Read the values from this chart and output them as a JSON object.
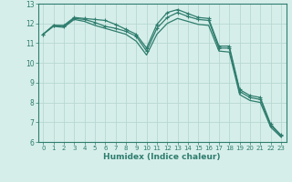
{
  "xlabel": "Humidex (Indice chaleur)",
  "xlim": [
    -0.5,
    23.5
  ],
  "ylim": [
    6,
    13
  ],
  "yticks": [
    6,
    7,
    8,
    9,
    10,
    11,
    12,
    13
  ],
  "xticks": [
    0,
    1,
    2,
    3,
    4,
    5,
    6,
    7,
    8,
    9,
    10,
    11,
    12,
    13,
    14,
    15,
    16,
    17,
    18,
    19,
    20,
    21,
    22,
    23
  ],
  "background_color": "#d6eeea",
  "grid_color": "#b8d8d2",
  "line_color": "#2e7d6e",
  "lines": [
    {
      "x": [
        0,
        1,
        2,
        3,
        4,
        5,
        6,
        7,
        8,
        9,
        10,
        11,
        12,
        13,
        14,
        15,
        16,
        17,
        18,
        19,
        20,
        21,
        22,
        23
      ],
      "y": [
        11.45,
        11.9,
        11.9,
        12.3,
        12.25,
        12.2,
        12.15,
        11.95,
        11.7,
        11.45,
        10.75,
        11.95,
        12.55,
        12.7,
        12.5,
        12.3,
        12.25,
        10.85,
        10.85,
        8.65,
        8.35,
        8.25,
        6.9,
        6.35
      ],
      "marker": true
    },
    {
      "x": [
        0,
        1,
        2,
        3,
        4,
        5,
        6,
        7,
        8,
        9,
        10,
        11,
        12,
        13,
        14,
        15,
        16,
        17,
        18,
        19,
        20,
        21,
        22,
        23
      ],
      "y": [
        11.45,
        11.9,
        11.85,
        12.25,
        12.2,
        12.05,
        11.85,
        11.75,
        11.6,
        11.35,
        10.6,
        11.75,
        12.3,
        12.55,
        12.35,
        12.2,
        12.15,
        10.75,
        10.75,
        8.55,
        8.25,
        8.15,
        6.85,
        6.3
      ],
      "marker": true
    },
    {
      "x": [
        0,
        1,
        2,
        3,
        4,
        5,
        6,
        7,
        8,
        9,
        10,
        11,
        12,
        13,
        14,
        15,
        16,
        17,
        18,
        19,
        20,
        21,
        22,
        23
      ],
      "y": [
        11.45,
        11.85,
        11.8,
        12.2,
        12.1,
        11.9,
        11.75,
        11.6,
        11.45,
        11.1,
        10.4,
        11.45,
        12.0,
        12.25,
        12.1,
        11.95,
        11.9,
        10.6,
        10.55,
        8.4,
        8.1,
        8.0,
        6.75,
        6.25
      ],
      "marker": false
    }
  ]
}
